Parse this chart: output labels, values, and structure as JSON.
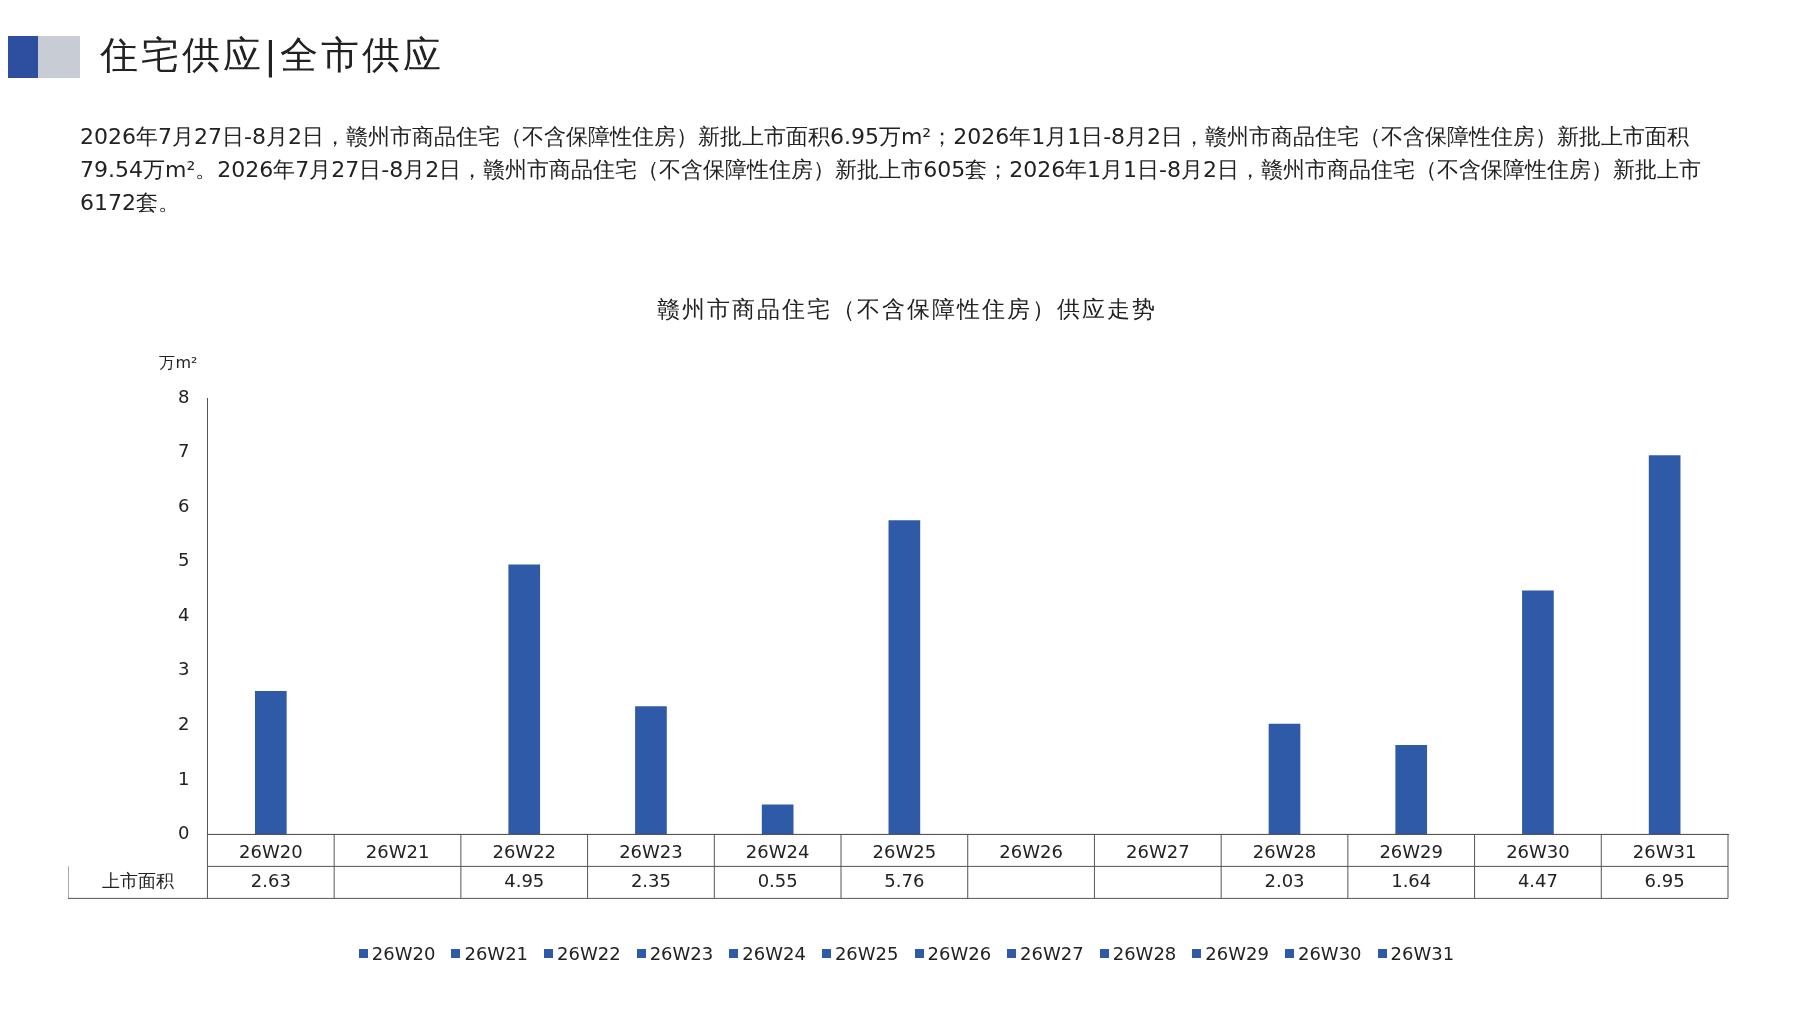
{
  "chart_data": {
    "type": "bar",
    "title": "住宅供应|全市供应",
    "subtitle": "赣州市商品住宅（不含保障性住房）供应走势",
    "annotations": [
      "2026年7月27日-8月2日，赣州市商品住宅（不含保障性住房）新批上市面积6.95万m²；2026年1月1日-8月2日，赣州市商品住宅（不含保障性住房）新批上市面积79.54万m²。2026年7月27日-8月2日，赣州市商品住宅（不含保障性住房）新批上市605套；2026年1月1日-8月2日，赣州市商品住宅（不含保障性住房）新批上市6172套。"
    ],
    "ylabel": "万m²",
    "categories": [
      "26W20",
      "26W21",
      "26W22",
      "26W23",
      "26W24",
      "26W25",
      "26W26",
      "26W27",
      "26W28",
      "26W29",
      "26W30",
      "26W31"
    ],
    "series": [
      {
        "name": "上市面积",
        "color": "#2e5aa8",
        "values": [
          2.63,
          null,
          4.95,
          2.35,
          0.55,
          5.76,
          null,
          null,
          2.03,
          1.64,
          4.47,
          6.95
        ]
      }
    ],
    "ylim": [
      0,
      8
    ],
    "yticks": [
      0,
      1,
      2,
      3,
      4,
      5,
      6,
      7,
      8
    ],
    "grid": false,
    "legend": "bottom",
    "data_labels": true
  }
}
